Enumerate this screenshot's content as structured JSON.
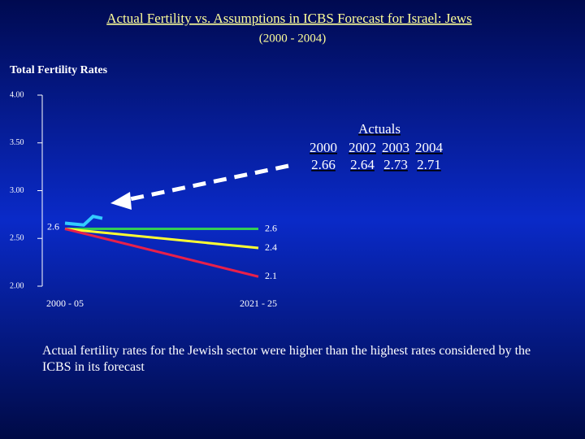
{
  "chart_data": {
    "type": "line",
    "title": "Actual Fertility vs. Assumptions in ICBS Forecast for Israel:  Jews",
    "subtitle": "(2000 - 2004)",
    "y_label": "Total Fertility Rates",
    "categories": [
      "2000 - 05",
      "2021 - 25"
    ],
    "series": [
      {
        "color": "#33cc55",
        "values": [
          2.6,
          2.6
        ]
      },
      {
        "color": "#ffff33",
        "values": [
          2.6,
          2.4
        ]
      },
      {
        "color": "#e8204a",
        "values": [
          2.6,
          2.1
        ]
      }
    ],
    "actuals": {
      "name": "Actuals",
      "color": "#33ccff",
      "x": [
        2000,
        2002,
        2003,
        2004
      ],
      "values": [
        2.66,
        2.64,
        2.73,
        2.71
      ]
    },
    "ylim": [
      2,
      4
    ],
    "yticks": [
      {
        "value": 2,
        "label": "2.00"
      },
      {
        "value": 2.5,
        "label": "2.50"
      },
      {
        "value": 3,
        "label": "3.00"
      },
      {
        "value": 3.5,
        "label": "3.50"
      },
      {
        "value": 4,
        "label": "4.00"
      }
    ],
    "annotation": "Actual fertility rates for the Jewish sector were higher than the highest rates considered by the ICBS in its forecast"
  }
}
